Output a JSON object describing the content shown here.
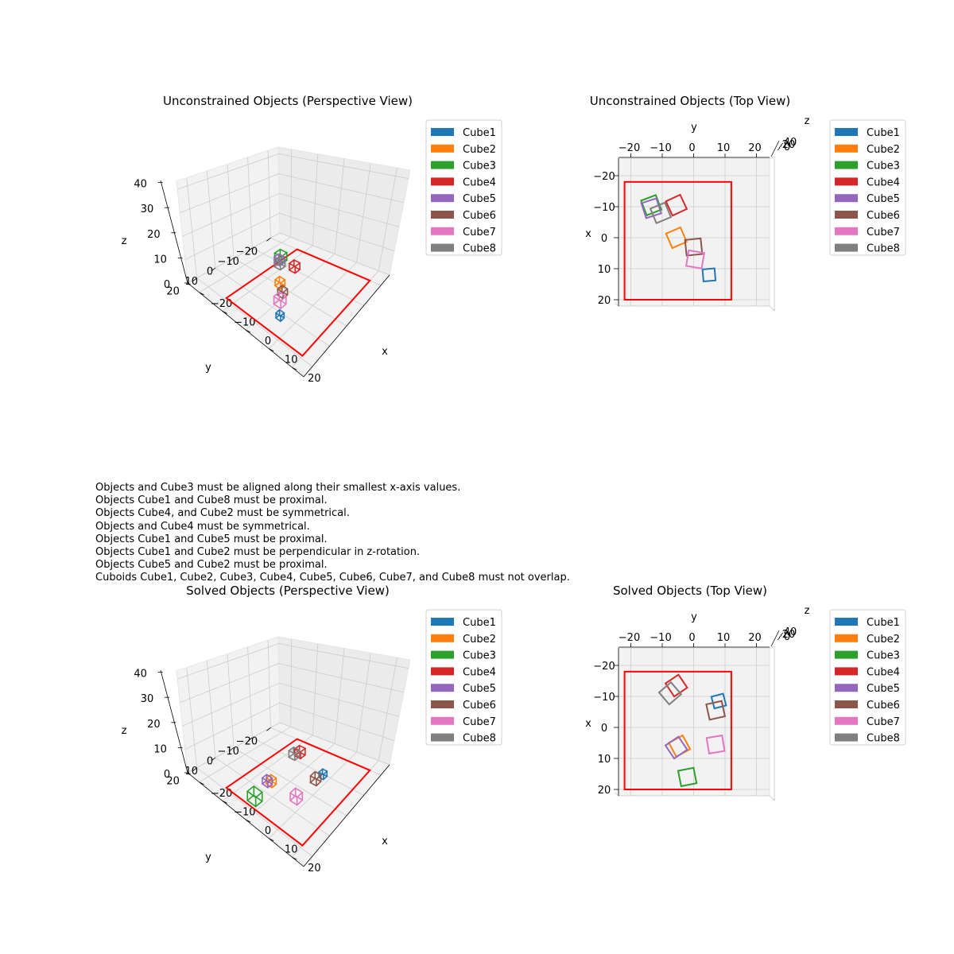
{
  "legend_labels": [
    "Cube1",
    "Cube2",
    "Cube3",
    "Cube4",
    "Cube5",
    "Cube6",
    "Cube7",
    "Cube8"
  ],
  "colors": [
    "#1f77b4",
    "#ff7f0e",
    "#2ca02c",
    "#d62728",
    "#9467bd",
    "#8c564b",
    "#e377c2",
    "#7f7f7f"
  ],
  "boundary_color": "#ff0000",
  "constraints": [
    "Objects and Cube3 must be aligned along their smallest x-axis values.",
    "Objects Cube1 and Cube8 must be proximal.",
    "Objects Cube4, and Cube2 must be symmetrical.",
    "Objects and Cube4 must be symmetrical.",
    "Objects Cube1 and Cube5 must be proximal.",
    "Objects Cube1 and Cube2 must be perpendicular in z-rotation.",
    "Objects Cube5 and Cube2 must be proximal.",
    "Cuboids Cube1, Cube2, Cube3, Cube4, Cube5, Cube6, Cube7, and Cube8 must not overlap."
  ],
  "chart_data": [
    {
      "type": "scatter",
      "view": "perspective",
      "title": "Unconstrained Objects (Perspective View)",
      "xlabel": "x",
      "ylabel": "y",
      "zlabel": "z",
      "x_ticks": [
        "−20",
        "−10",
        "0",
        "10",
        "20"
      ],
      "y_ticks": [
        "−20",
        "−10",
        "0",
        "10",
        "20"
      ],
      "z_ticks": [
        "0",
        "10",
        "20",
        "30",
        "40"
      ],
      "xlim": [
        -25,
        25
      ],
      "ylim": [
        -25,
        25
      ],
      "zlim": [
        0,
        40
      ],
      "boundary": {
        "x": [
          -13,
          20
        ],
        "y": [
          -20,
          19
        ]
      },
      "objects": [
        {
          "name": "Cube1",
          "x": 4.9,
          "y": 12,
          "size": 2
        },
        {
          "name": "Cube2",
          "x": -4.5,
          "y": 0,
          "size": 2.4
        },
        {
          "name": "Cube3",
          "x": -13,
          "y": -11,
          "size": 3
        },
        {
          "name": "Cube4",
          "x": -6,
          "y": -10,
          "size": 2.6
        },
        {
          "name": "Cube5",
          "x": -12.5,
          "y": -9.5,
          "size": 2.4
        },
        {
          "name": "Cube6",
          "x": -1,
          "y": 3,
          "size": 2.4
        },
        {
          "name": "Cube7",
          "x": 1,
          "y": 7,
          "size": 3
        },
        {
          "name": "Cube8",
          "x": -11,
          "y": -8,
          "size": 2.6
        }
      ],
      "legend": "upper right",
      "grid": true
    },
    {
      "type": "scatter",
      "view": "top",
      "title": "Unconstrained Objects (Top View)",
      "xlabel": "x",
      "ylabel": "y",
      "zlabel": "z",
      "y_ticks": [
        "−20",
        "−10",
        "0",
        "10",
        "20"
      ],
      "x_ticks": [
        "−20",
        "−10",
        "0",
        "10",
        "20"
      ],
      "z_ticks": [
        "0",
        "20",
        "40"
      ],
      "xlim": [
        -25,
        25
      ],
      "ylim": [
        -25,
        25
      ],
      "boundary": {
        "x": [
          -22,
          12
        ],
        "y": [
          -18,
          20
        ]
      },
      "objects": [
        {
          "name": "Cube1",
          "x": 4.9,
          "y": 12,
          "size": 2
        },
        {
          "name": "Cube2",
          "x": -5.5,
          "y": 0,
          "size": 2.6
        },
        {
          "name": "Cube3",
          "x": -13.5,
          "y": -10.5,
          "size": 2.6
        },
        {
          "name": "Cube4",
          "x": -5.5,
          "y": -10.5,
          "size": 2.6
        },
        {
          "name": "Cube5",
          "x": -13.5,
          "y": -9.5,
          "size": 2.6
        },
        {
          "name": "Cube6",
          "x": 0,
          "y": 3,
          "size": 2.6
        },
        {
          "name": "Cube7",
          "x": 0.5,
          "y": 7,
          "size": 2.6
        },
        {
          "name": "Cube8",
          "x": -10.5,
          "y": -8,
          "size": 2.6
        }
      ],
      "legend": "upper right",
      "grid": true
    },
    {
      "type": "scatter",
      "view": "perspective",
      "title": "Solved Objects (Perspective View)",
      "xlabel": "x",
      "ylabel": "y",
      "zlabel": "z",
      "x_ticks": [
        "−20",
        "−10",
        "0",
        "10",
        "20"
      ],
      "y_ticks": [
        "−20",
        "−10",
        "0",
        "10",
        "20"
      ],
      "z_ticks": [
        "0",
        "10",
        "20",
        "30",
        "40"
      ],
      "xlim": [
        -25,
        25
      ],
      "ylim": [
        -25,
        25
      ],
      "zlim": [
        0,
        40
      ],
      "boundary": {
        "x": [
          -13,
          20
        ],
        "y": [
          -20,
          19
        ]
      },
      "objects": [
        {
          "name": "Cube1",
          "x": 7.5,
          "y": -9,
          "size": 2
        },
        {
          "name": "Cube2",
          "x": -4,
          "y": 5.5,
          "size": 2.4
        },
        {
          "name": "Cube3",
          "x": -3,
          "y": 16,
          "size": 3.6
        },
        {
          "name": "Cube4",
          "x": -6,
          "y": -13,
          "size": 2.6
        },
        {
          "name": "Cube5",
          "x": -5,
          "y": 6.5,
          "size": 2.4
        },
        {
          "name": "Cube6",
          "x": 7,
          "y": -5.5,
          "size": 2.6
        },
        {
          "name": "Cube7",
          "x": 7,
          "y": 5.5,
          "size": 3
        },
        {
          "name": "Cube8",
          "x": -7,
          "y": -11,
          "size": 2.6
        }
      ],
      "legend": "upper right",
      "grid": true
    },
    {
      "type": "scatter",
      "view": "top",
      "title": "Solved Objects (Top View)",
      "xlabel": "x",
      "ylabel": "y",
      "zlabel": "z",
      "y_ticks": [
        "−20",
        "−10",
        "0",
        "10",
        "20"
      ],
      "x_ticks": [
        "−20",
        "−10",
        "0",
        "10",
        "20"
      ],
      "z_ticks": [
        "0",
        "20",
        "40"
      ],
      "xlim": [
        -25,
        25
      ],
      "ylim": [
        -25,
        25
      ],
      "boundary": {
        "x": [
          -22,
          12
        ],
        "y": [
          -18,
          20
        ]
      },
      "objects": [
        {
          "name": "Cube1",
          "x": 8,
          "y": -8.5,
          "size": 2
        },
        {
          "name": "Cube2",
          "x": -4.5,
          "y": 6,
          "size": 2.6
        },
        {
          "name": "Cube3",
          "x": -2,
          "y": 16,
          "size": 2.6
        },
        {
          "name": "Cube4",
          "x": -5.5,
          "y": -13.5,
          "size": 2.6
        },
        {
          "name": "Cube5",
          "x": -5.5,
          "y": 6.5,
          "size": 2.6
        },
        {
          "name": "Cube6",
          "x": 7,
          "y": -5.5,
          "size": 2.6
        },
        {
          "name": "Cube7",
          "x": 7,
          "y": 5.5,
          "size": 2.6
        },
        {
          "name": "Cube8",
          "x": -7.5,
          "y": -11,
          "size": 2.6
        }
      ],
      "legend": "upper right",
      "grid": true
    }
  ]
}
